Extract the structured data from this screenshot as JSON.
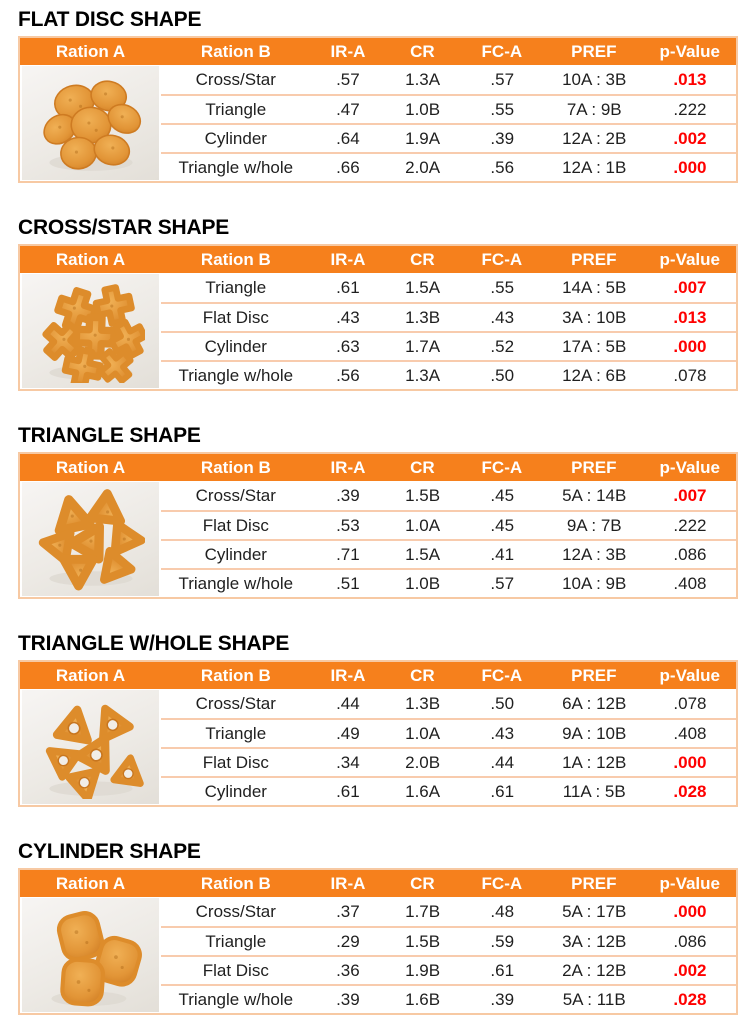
{
  "colors": {
    "header_bg": "#F6801C",
    "header_text": "#FFFFFF",
    "row_divider": "#F8CBAD",
    "table_border": "#F7C9A3",
    "body_text": "#1F1F1F",
    "significant_text": "#FF0000"
  },
  "columns": [
    "Ration A",
    "Ration B",
    "IR-A",
    "CR",
    "FC-A",
    "PREF",
    "p-Value"
  ],
  "tables": [
    {
      "title": "FLAT DISC SHAPE",
      "photo_icon": "flat-disc-kibble-photo",
      "rows": [
        {
          "ration_b": "Cross/Star",
          "ir_a": ".57",
          "cr": "1.3A",
          "fc_a": ".57",
          "pref": "10A : 3B",
          "p_value": ".013",
          "significant": true
        },
        {
          "ration_b": "Triangle",
          "ir_a": ".47",
          "cr": "1.0B",
          "fc_a": ".55",
          "pref": "7A : 9B",
          "p_value": ".222",
          "significant": false
        },
        {
          "ration_b": "Cylinder",
          "ir_a": ".64",
          "cr": "1.9A",
          "fc_a": ".39",
          "pref": "12A : 2B",
          "p_value": ".002",
          "significant": true
        },
        {
          "ration_b": "Triangle w/hole",
          "ir_a": ".66",
          "cr": "2.0A",
          "fc_a": ".56",
          "pref": "12A : 1B",
          "p_value": ".000",
          "significant": true
        }
      ]
    },
    {
      "title": "CROSS/STAR SHAPE",
      "photo_icon": "cross-star-kibble-photo",
      "rows": [
        {
          "ration_b": "Triangle",
          "ir_a": ".61",
          "cr": "1.5A",
          "fc_a": ".55",
          "pref": "14A : 5B",
          "p_value": ".007",
          "significant": true
        },
        {
          "ration_b": "Flat Disc",
          "ir_a": ".43",
          "cr": "1.3B",
          "fc_a": ".43",
          "pref": "3A : 10B",
          "p_value": ".013",
          "significant": true
        },
        {
          "ration_b": "Cylinder",
          "ir_a": ".63",
          "cr": "1.7A",
          "fc_a": ".52",
          "pref": "17A : 5B",
          "p_value": ".000",
          "significant": true
        },
        {
          "ration_b": "Triangle w/hole",
          "ir_a": ".56",
          "cr": "1.3A",
          "fc_a": ".50",
          "pref": "12A : 6B",
          "p_value": ".078",
          "significant": false
        }
      ]
    },
    {
      "title": "TRIANGLE SHAPE",
      "photo_icon": "triangle-kibble-photo",
      "rows": [
        {
          "ration_b": "Cross/Star",
          "ir_a": ".39",
          "cr": "1.5B",
          "fc_a": ".45",
          "pref": "5A : 14B",
          "p_value": ".007",
          "significant": true
        },
        {
          "ration_b": "Flat Disc",
          "ir_a": ".53",
          "cr": "1.0A",
          "fc_a": ".45",
          "pref": "9A : 7B",
          "p_value": ".222",
          "significant": false
        },
        {
          "ration_b": "Cylinder",
          "ir_a": ".71",
          "cr": "1.5A",
          "fc_a": ".41",
          "pref": "12A : 3B",
          "p_value": ".086",
          "significant": false
        },
        {
          "ration_b": "Triangle w/hole",
          "ir_a": ".51",
          "cr": "1.0B",
          "fc_a": ".57",
          "pref": "10A : 9B",
          "p_value": ".408",
          "significant": false
        }
      ]
    },
    {
      "title": "TRIANGLE W/HOLE SHAPE",
      "photo_icon": "triangle-with-hole-kibble-photo",
      "rows": [
        {
          "ration_b": "Cross/Star",
          "ir_a": ".44",
          "cr": "1.3B",
          "fc_a": ".50",
          "pref": "6A : 12B",
          "p_value": ".078",
          "significant": false
        },
        {
          "ration_b": "Triangle",
          "ir_a": ".49",
          "cr": "1.0A",
          "fc_a": ".43",
          "pref": "9A : 10B",
          "p_value": ".408",
          "significant": false
        },
        {
          "ration_b": "Flat Disc",
          "ir_a": ".34",
          "cr": "2.0B",
          "fc_a": ".44",
          "pref": "1A : 12B",
          "p_value": ".000",
          "significant": true
        },
        {
          "ration_b": "Cylinder",
          "ir_a": ".61",
          "cr": "1.6A",
          "fc_a": ".61",
          "pref": "11A : 5B",
          "p_value": ".028",
          "significant": true
        }
      ]
    },
    {
      "title": "CYLINDER SHAPE",
      "photo_icon": "cylinder-kibble-photo",
      "rows": [
        {
          "ration_b": "Cross/Star",
          "ir_a": ".37",
          "cr": "1.7B",
          "fc_a": ".48",
          "pref": "5A : 17B",
          "p_value": ".000",
          "significant": true
        },
        {
          "ration_b": "Triangle",
          "ir_a": ".29",
          "cr": "1.5B",
          "fc_a": ".59",
          "pref": "3A : 12B",
          "p_value": ".086",
          "significant": false
        },
        {
          "ration_b": "Flat Disc",
          "ir_a": ".36",
          "cr": "1.9B",
          "fc_a": ".61",
          "pref": "2A : 12B",
          "p_value": ".002",
          "significant": true
        },
        {
          "ration_b": "Triangle w/hole",
          "ir_a": ".39",
          "cr": "1.6B",
          "fc_a": ".39",
          "pref": "5A : 11B",
          "p_value": ".028",
          "significant": true
        }
      ]
    }
  ]
}
